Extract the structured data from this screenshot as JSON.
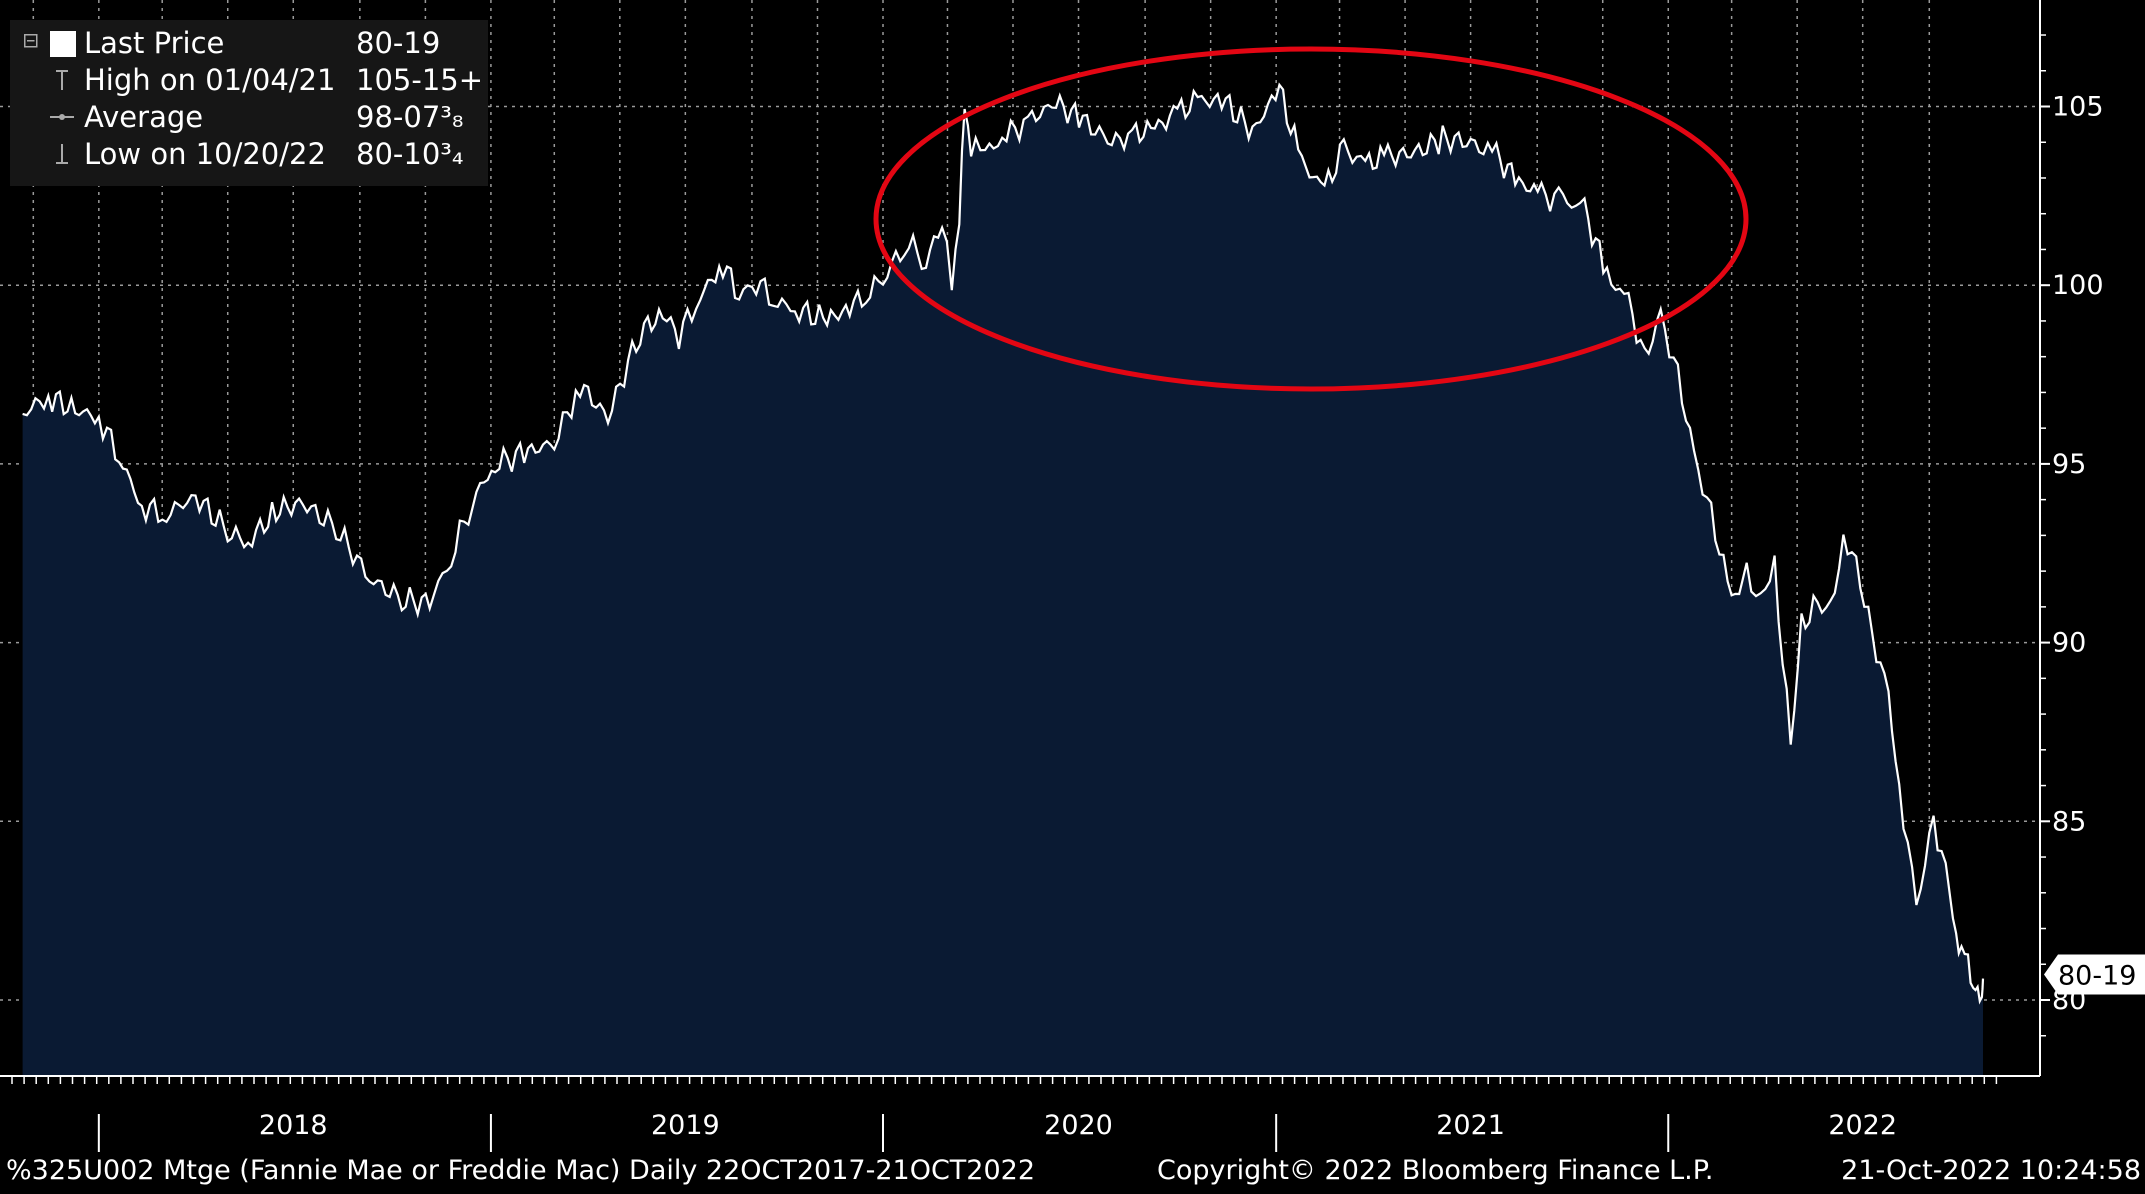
{
  "legend": {
    "last_price_label": "Last Price",
    "last_price_value": "80-19",
    "high_label": "High on 01/04/21",
    "high_value": "105-15+",
    "average_label": "Average",
    "average_value": "98-07³₈",
    "low_label": "Low on 10/20/22",
    "low_value": "80-10³₄"
  },
  "footer": {
    "security": "%325U002 Mtge (Fannie Mae or Freddie Mac)  Daily 22OCT2017-21OCT2022",
    "copyright": "Copyright© 2022 Bloomberg Finance L.P.",
    "timestamp": "21-Oct-2022 10:24:58"
  },
  "colors": {
    "background": "#000000",
    "area_fill": "#0a1a33",
    "line": "#ffffff",
    "grid": "#9a9a9a",
    "annotation_ellipse": "#e30613"
  },
  "chart_data": {
    "type": "area",
    "title": "",
    "xlabel": "",
    "ylabel": "",
    "x_ticks": [
      "2018",
      "2019",
      "2020",
      "2021",
      "2022"
    ],
    "y_ticks": [
      "80",
      "85",
      "90",
      "95",
      "100",
      "105"
    ],
    "ylim": [
      78,
      108
    ],
    "xlim": [
      "2017-10-22",
      "2022-10-21"
    ],
    "grid": true,
    "legend_position": "top-left",
    "last_value_label": "80-19",
    "annotation": "red ellipse around 2020-2021 plateau",
    "series": [
      {
        "x": [
          "2017-10-22",
          "2017-11-15",
          "2017-12-10",
          "2018-01-01",
          "2018-01-20",
          "2018-02-10",
          "2018-03-05",
          "2018-04-01",
          "2018-05-01",
          "2018-05-20",
          "2018-06-15",
          "2018-07-10",
          "2018-08-10",
          "2018-09-10",
          "2018-10-10",
          "2018-11-05",
          "2018-11-25",
          "2018-12-15",
          "2019-01-05",
          "2019-02-01",
          "2019-03-01",
          "2019-03-25",
          "2019-04-20",
          "2019-05-20",
          "2019-06-10",
          "2019-06-25",
          "2019-07-15",
          "2019-08-05",
          "2019-08-20",
          "2019-09-05",
          "2019-09-25",
          "2019-10-15",
          "2019-11-10",
          "2019-12-01",
          "2019-12-20",
          "2020-01-05",
          "2020-01-25",
          "2020-02-10",
          "2020-02-25",
          "2020-03-05",
          "2020-03-12",
          "2020-03-17",
          "2020-03-23",
          "2020-04-05",
          "2020-04-25",
          "2020-05-15",
          "2020-06-10",
          "2020-07-05",
          "2020-08-01",
          "2020-08-20",
          "2020-09-10",
          "2020-10-01",
          "2020-10-20",
          "2020-11-15",
          "2020-12-10",
          "2021-01-04",
          "2021-01-25",
          "2021-02-15",
          "2021-03-05",
          "2021-03-25",
          "2021-04-15",
          "2021-05-10",
          "2021-06-05",
          "2021-07-01",
          "2021-07-25",
          "2021-08-15",
          "2021-09-05",
          "2021-09-25",
          "2021-10-15",
          "2021-11-05",
          "2021-11-25",
          "2021-12-10",
          "2021-12-25",
          "2022-01-10",
          "2022-01-25",
          "2022-02-10",
          "2022-03-01",
          "2022-03-15",
          "2022-03-28",
          "2022-04-10",
          "2022-04-25",
          "2022-05-05",
          "2022-05-20",
          "2022-06-01",
          "2022-06-13",
          "2022-06-25",
          "2022-07-10",
          "2022-07-25",
          "2022-08-04",
          "2022-08-20",
          "2022-09-05",
          "2022-09-20",
          "2022-09-26",
          "2022-10-01",
          "2022-10-07",
          "2022-10-12",
          "2022-10-16",
          "2022-10-20",
          "2022-10-21"
        ],
        "y": [
          96.4,
          96.9,
          96.5,
          96.3,
          95.2,
          93.8,
          93.6,
          94.1,
          93.1,
          92.8,
          93.7,
          93.9,
          93.2,
          91.8,
          91.2,
          91.1,
          92.4,
          94.0,
          95.0,
          95.3,
          95.6,
          97.2,
          96.3,
          98.7,
          99.2,
          98.6,
          99.7,
          100.6,
          99.7,
          100.1,
          99.5,
          99.3,
          99.0,
          99.4,
          99.8,
          100.4,
          101.2,
          100.6,
          101.8,
          99.9,
          101.9,
          104.9,
          103.8,
          103.7,
          104.2,
          104.6,
          105.1,
          104.6,
          104.0,
          104.2,
          104.4,
          104.8,
          105.2,
          105.1,
          104.3,
          105.5,
          103.4,
          102.7,
          103.8,
          103.4,
          103.6,
          103.7,
          104.1,
          104.0,
          103.6,
          102.9,
          102.5,
          102.4,
          102.1,
          100.3,
          99.5,
          98.0,
          99.1,
          97.5,
          95.2,
          93.6,
          91.2,
          91.9,
          91.3,
          92.1,
          87.1,
          90.5,
          91.1,
          90.9,
          93.0,
          92.2,
          90.2,
          88.5,
          86.0,
          82.6,
          85.1,
          83.0,
          81.8,
          81.6,
          81.2,
          80.5,
          80.3,
          80.3,
          80.6
        ]
      }
    ]
  }
}
